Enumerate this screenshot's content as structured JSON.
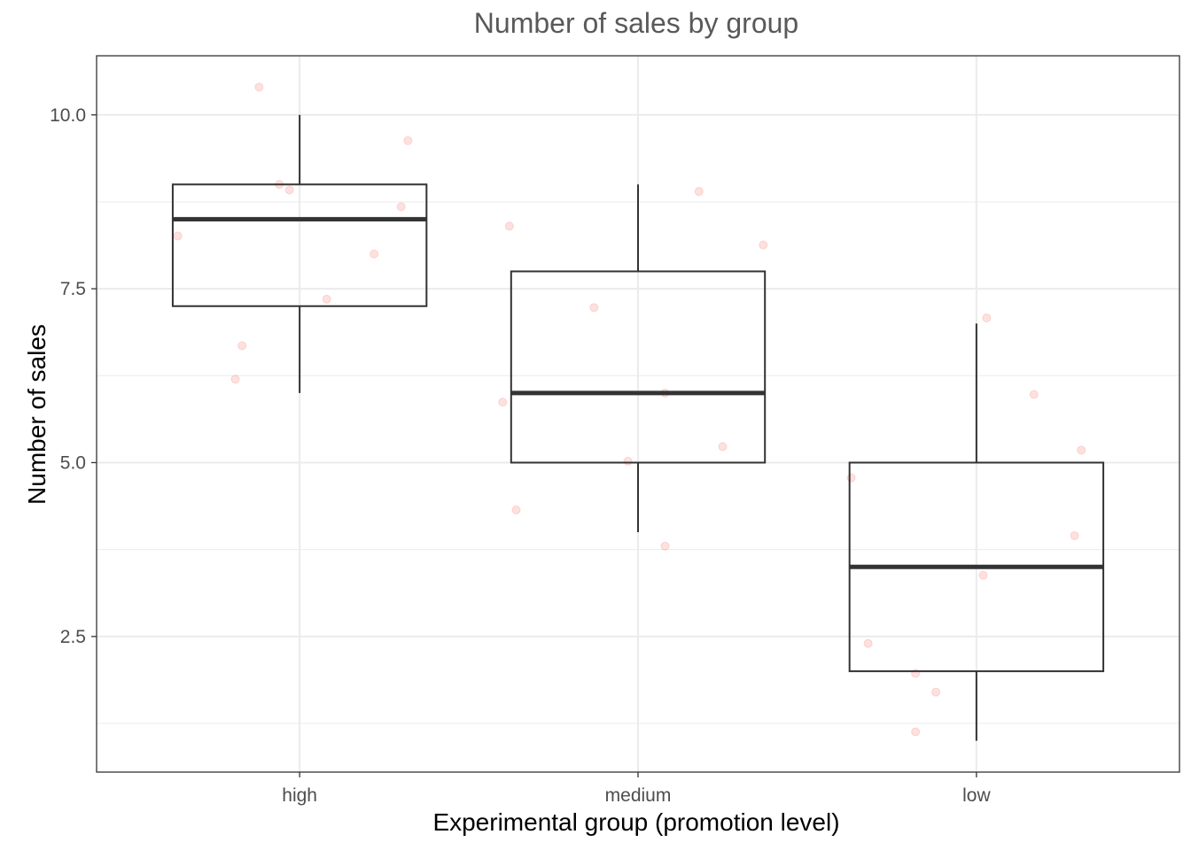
{
  "chart_data": {
    "type": "boxplot",
    "title": "Number of sales by group",
    "xlabel": "Experimental group (promotion level)",
    "ylabel": "Number of sales",
    "categories": [
      "high",
      "medium",
      "low"
    ],
    "ylim": [
      0.55,
      10.85
    ],
    "y_ticks": [
      2.5,
      5.0,
      7.5,
      10.0
    ],
    "y_tick_labels": [
      "2.5",
      "5.0",
      "7.5",
      "10.0"
    ],
    "grid": true,
    "box_stats": [
      {
        "group": "high",
        "min": 6,
        "q1": 7.25,
        "median": 8.5,
        "q3": 9,
        "max": 10
      },
      {
        "group": "medium",
        "min": 4,
        "q1": 5,
        "median": 6,
        "q3": 7.75,
        "max": 9
      },
      {
        "group": "low",
        "min": 1,
        "q1": 2,
        "median": 3.5,
        "q3": 5,
        "max": 7
      }
    ],
    "jitter_points": [
      {
        "group": "high",
        "offset": -0.36,
        "value": 8.26
      },
      {
        "group": "high",
        "offset": -0.19,
        "value": 6.2
      },
      {
        "group": "high",
        "offset": -0.17,
        "value": 6.68
      },
      {
        "group": "high",
        "offset": -0.12,
        "value": 10.4
      },
      {
        "group": "high",
        "offset": -0.06,
        "value": 9.0
      },
      {
        "group": "high",
        "offset": -0.03,
        "value": 8.92
      },
      {
        "group": "high",
        "offset": 0.08,
        "value": 7.35
      },
      {
        "group": "high",
        "offset": 0.22,
        "value": 8.0
      },
      {
        "group": "high",
        "offset": 0.3,
        "value": 8.68
      },
      {
        "group": "high",
        "offset": 0.32,
        "value": 9.63
      },
      {
        "group": "medium",
        "offset": -0.4,
        "value": 5.87
      },
      {
        "group": "medium",
        "offset": -0.38,
        "value": 8.4
      },
      {
        "group": "medium",
        "offset": -0.36,
        "value": 4.32
      },
      {
        "group": "medium",
        "offset": -0.13,
        "value": 7.23
      },
      {
        "group": "medium",
        "offset": -0.03,
        "value": 5.02
      },
      {
        "group": "medium",
        "offset": 0.08,
        "value": 6.0
      },
      {
        "group": "medium",
        "offset": 0.08,
        "value": 3.8
      },
      {
        "group": "medium",
        "offset": 0.18,
        "value": 8.9
      },
      {
        "group": "medium",
        "offset": 0.25,
        "value": 5.23
      },
      {
        "group": "medium",
        "offset": 0.37,
        "value": 8.13
      },
      {
        "group": "low",
        "offset": -0.37,
        "value": 4.78
      },
      {
        "group": "low",
        "offset": -0.32,
        "value": 2.4
      },
      {
        "group": "low",
        "offset": -0.18,
        "value": 1.97
      },
      {
        "group": "low",
        "offset": -0.18,
        "value": 1.13
      },
      {
        "group": "low",
        "offset": -0.12,
        "value": 1.7
      },
      {
        "group": "low",
        "offset": 0.02,
        "value": 3.38
      },
      {
        "group": "low",
        "offset": 0.03,
        "value": 7.08
      },
      {
        "group": "low",
        "offset": 0.17,
        "value": 5.98
      },
      {
        "group": "low",
        "offset": 0.29,
        "value": 3.95
      },
      {
        "group": "low",
        "offset": 0.31,
        "value": 5.18
      }
    ]
  },
  "colors": {
    "point_fill": "#f8766d",
    "box_stroke": "#333333",
    "grid": "#ebebeb",
    "panel_border": "#333333",
    "axis_text": "#4d4d4d"
  }
}
